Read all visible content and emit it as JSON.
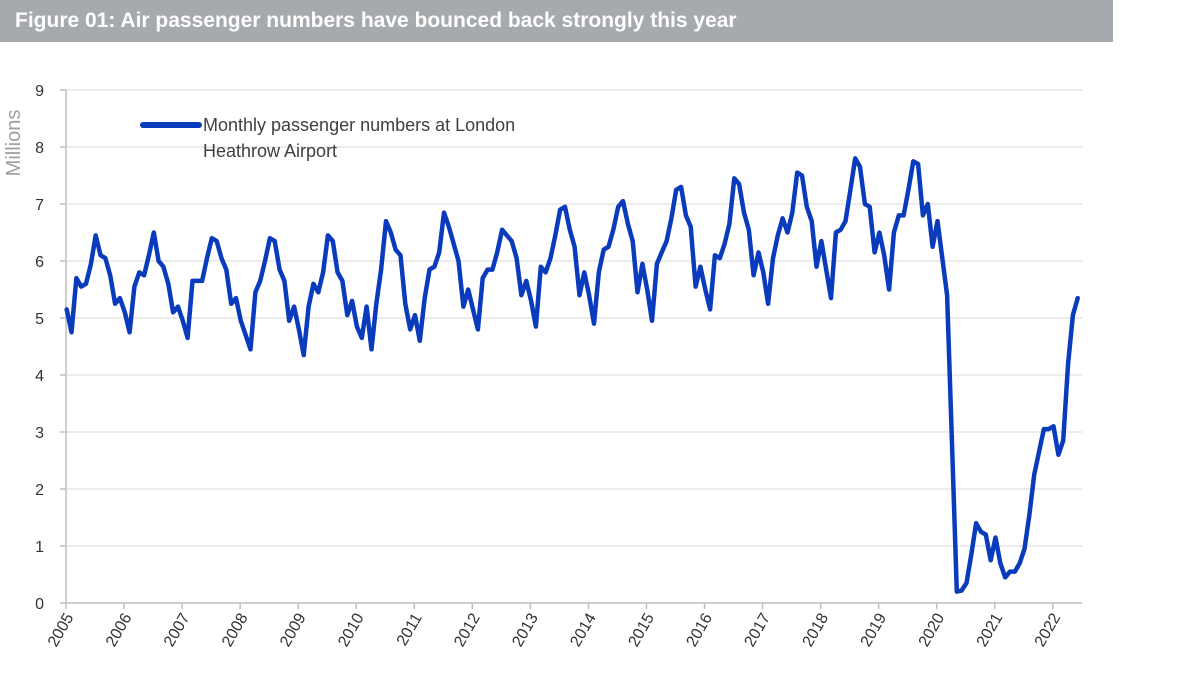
{
  "chart_data": {
    "type": "line",
    "title": "Figure 01: Air passenger numbers have bounced back strongly this year",
    "ylabel": "Millions",
    "xlabel": "",
    "ylim": [
      0,
      9
    ],
    "yticks": [
      0,
      1,
      2,
      3,
      4,
      5,
      6,
      7,
      8,
      9
    ],
    "xticks": [
      "2005",
      "2006",
      "2007",
      "2008",
      "2009",
      "2010",
      "2011",
      "2012",
      "2013",
      "2014",
      "2015",
      "2016",
      "2017",
      "2018",
      "2019",
      "2020",
      "2021",
      "2022"
    ],
    "legend": {
      "line1": "Monthly passenger numbers at London",
      "line2": "Heathrow Airport",
      "placement": "top-left"
    },
    "series": [
      {
        "name": "Monthly passenger numbers at London Heathrow Airport",
        "color": "#0b3bbd",
        "start": "2005-01",
        "values": [
          5.15,
          4.75,
          5.7,
          5.55,
          5.6,
          5.95,
          6.45,
          6.1,
          6.05,
          5.75,
          5.25,
          5.35,
          5.1,
          4.75,
          5.55,
          5.8,
          5.75,
          6.1,
          6.5,
          6.0,
          5.9,
          5.6,
          5.1,
          5.2,
          4.95,
          4.65,
          5.65,
          5.65,
          5.65,
          6.05,
          6.4,
          6.35,
          6.05,
          5.85,
          5.25,
          5.35,
          4.95,
          4.7,
          4.45,
          5.45,
          5.65,
          6.0,
          6.4,
          6.35,
          5.85,
          5.65,
          4.95,
          5.2,
          4.8,
          4.35,
          5.2,
          5.6,
          5.45,
          5.8,
          6.45,
          6.35,
          5.8,
          5.65,
          5.05,
          5.3,
          4.85,
          4.65,
          5.2,
          4.45,
          5.25,
          5.85,
          6.7,
          6.5,
          6.2,
          6.1,
          5.25,
          4.8,
          5.05,
          4.6,
          5.35,
          5.85,
          5.9,
          6.15,
          6.85,
          6.6,
          6.3,
          6.0,
          5.2,
          5.5,
          5.15,
          4.8,
          5.7,
          5.85,
          5.85,
          6.15,
          6.55,
          6.45,
          6.35,
          6.05,
          5.4,
          5.65,
          5.3,
          4.85,
          5.9,
          5.8,
          6.05,
          6.45,
          6.9,
          6.95,
          6.55,
          6.25,
          5.4,
          5.8,
          5.4,
          4.9,
          5.8,
          6.2,
          6.25,
          6.55,
          6.95,
          7.05,
          6.65,
          6.35,
          5.45,
          5.95,
          5.5,
          4.95,
          5.95,
          6.15,
          6.35,
          6.75,
          7.25,
          7.3,
          6.8,
          6.6,
          5.55,
          5.9,
          5.5,
          5.15,
          6.1,
          6.05,
          6.3,
          6.65,
          7.45,
          7.35,
          6.85,
          6.55,
          5.75,
          6.15,
          5.8,
          5.25,
          6.05,
          6.45,
          6.75,
          6.5,
          6.85,
          7.55,
          7.5,
          6.95,
          6.7,
          5.9,
          6.35,
          5.85,
          5.35,
          6.5,
          6.55,
          6.7,
          7.25,
          7.8,
          7.65,
          7.0,
          6.95,
          6.15,
          6.5,
          6.1,
          5.5,
          6.5,
          6.8,
          6.8,
          7.25,
          7.75,
          7.7,
          6.8,
          7.0,
          6.25,
          6.7,
          6.05,
          5.4,
          2.8,
          0.2,
          0.22,
          0.35,
          0.85,
          1.4,
          1.25,
          1.2,
          0.75,
          1.15,
          0.7,
          0.45,
          0.55,
          0.55,
          0.7,
          0.95,
          1.55,
          2.25,
          2.65,
          3.05,
          3.05,
          3.1,
          2.6,
          2.85,
          4.2,
          5.05,
          5.35
        ]
      }
    ]
  }
}
